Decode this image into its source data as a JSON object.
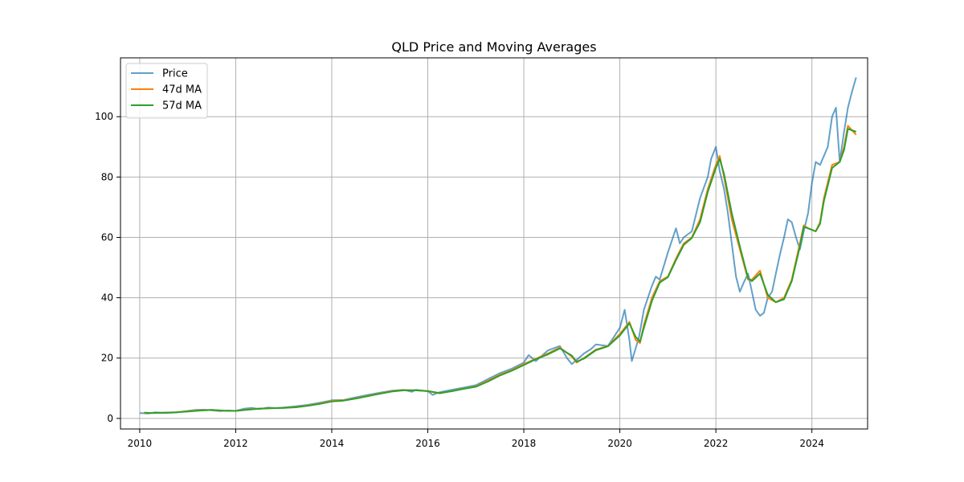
{
  "chart_data": {
    "type": "line",
    "title": "QLD Price and Moving Averages",
    "xlabel": "",
    "ylabel": "",
    "xlim": [
      2009.6,
      2025.16
    ],
    "ylim": [
      -3.5,
      119.5
    ],
    "x_ticks": [
      2010,
      2012,
      2014,
      2016,
      2018,
      2020,
      2022,
      2024
    ],
    "x_tick_labels": [
      "2010",
      "2012",
      "2014",
      "2016",
      "2018",
      "2020",
      "2022",
      "2024"
    ],
    "y_ticks": [
      0,
      20,
      40,
      60,
      80,
      100
    ],
    "y_tick_labels": [
      "0",
      "20",
      "40",
      "60",
      "80",
      "100"
    ],
    "grid": true,
    "legend_position": "top-left",
    "series": [
      {
        "name": "Price",
        "color": "#1f77b4",
        "x": [
          2010.0,
          2010.17,
          2010.33,
          2010.5,
          2010.67,
          2010.83,
          2011.0,
          2011.17,
          2011.33,
          2011.5,
          2011.67,
          2011.83,
          2012.0,
          2012.17,
          2012.33,
          2012.5,
          2012.67,
          2012.83,
          2013.0,
          2013.25,
          2013.5,
          2013.75,
          2014.0,
          2014.25,
          2014.5,
          2014.75,
          2015.0,
          2015.25,
          2015.5,
          2015.67,
          2015.75,
          2016.0,
          2016.1,
          2016.25,
          2016.5,
          2016.75,
          2017.0,
          2017.25,
          2017.5,
          2017.75,
          2018.0,
          2018.1,
          2018.25,
          2018.5,
          2018.75,
          2018.9,
          2019.0,
          2019.25,
          2019.4,
          2019.5,
          2019.75,
          2020.0,
          2020.1,
          2020.2,
          2020.25,
          2020.4,
          2020.5,
          2020.67,
          2020.75,
          2020.83,
          2021.0,
          2021.17,
          2021.25,
          2021.33,
          2021.5,
          2021.67,
          2021.83,
          2021.9,
          2022.0,
          2022.08,
          2022.17,
          2022.25,
          2022.33,
          2022.42,
          2022.5,
          2022.58,
          2022.67,
          2022.75,
          2022.83,
          2022.92,
          2023.0,
          2023.08,
          2023.17,
          2023.25,
          2023.33,
          2023.42,
          2023.5,
          2023.58,
          2023.67,
          2023.75,
          2023.83,
          2023.92,
          2024.0,
          2024.08,
          2024.17,
          2024.25,
          2024.33,
          2024.42,
          2024.5,
          2024.58,
          2024.67,
          2024.75,
          2024.83,
          2024.92
        ],
        "values": [
          1.8,
          1.6,
          2.0,
          1.8,
          1.9,
          2.1,
          2.5,
          2.8,
          2.9,
          2.7,
          2.4,
          2.6,
          2.5,
          3.2,
          3.5,
          3.1,
          3.6,
          3.4,
          3.6,
          4.0,
          4.5,
          5.2,
          6.0,
          6.1,
          7.0,
          7.8,
          8.5,
          9.2,
          9.5,
          8.8,
          9.5,
          9.0,
          7.8,
          8.7,
          9.5,
          10.2,
          11.0,
          13.0,
          15.0,
          16.5,
          18.5,
          21.0,
          19.0,
          22.5,
          24.0,
          20.0,
          18.0,
          21.5,
          23.0,
          24.5,
          24.0,
          30.0,
          36.0,
          26.0,
          19.0,
          27.0,
          36.0,
          44.0,
          47.0,
          46.0,
          55.0,
          63.0,
          58.0,
          60.0,
          62.0,
          73.0,
          80.0,
          86.0,
          90.0,
          82.0,
          76.0,
          68.0,
          58.0,
          47.0,
          42.0,
          45.0,
          48.0,
          42.0,
          36.0,
          34.0,
          35.0,
          40.0,
          42.0,
          48.0,
          54.0,
          60.0,
          66.0,
          65.0,
          60.0,
          56.0,
          62.0,
          68.0,
          78.0,
          85.0,
          84.0,
          87.0,
          90.0,
          100.0,
          103.0,
          85.0,
          95.0,
          103.0,
          108.0,
          113.0
        ]
      },
      {
        "name": "47d MA",
        "color": "#ff7f0e",
        "x": [
          2010.08,
          2010.25,
          2010.5,
          2010.75,
          2011.0,
          2011.25,
          2011.5,
          2011.75,
          2012.0,
          2012.25,
          2012.5,
          2012.75,
          2013.0,
          2013.25,
          2013.5,
          2013.75,
          2014.0,
          2014.25,
          2014.5,
          2014.75,
          2015.0,
          2015.25,
          2015.5,
          2015.75,
          2016.0,
          2016.25,
          2016.5,
          2016.75,
          2017.0,
          2017.25,
          2017.5,
          2017.75,
          2018.0,
          2018.25,
          2018.5,
          2018.75,
          2019.0,
          2019.1,
          2019.25,
          2019.5,
          2019.75,
          2020.0,
          2020.2,
          2020.33,
          2020.42,
          2020.5,
          2020.67,
          2020.83,
          2021.0,
          2021.17,
          2021.33,
          2021.5,
          2021.67,
          2021.83,
          2022.0,
          2022.08,
          2022.17,
          2022.33,
          2022.5,
          2022.67,
          2022.75,
          2022.92,
          2023.08,
          2023.25,
          2023.42,
          2023.58,
          2023.75,
          2023.83,
          2023.92,
          2024.08,
          2024.17,
          2024.25,
          2024.42,
          2024.58,
          2024.67,
          2024.75,
          2024.92
        ],
        "values": [
          1.9,
          1.8,
          1.9,
          2.0,
          2.4,
          2.7,
          2.8,
          2.5,
          2.5,
          3.0,
          3.3,
          3.4,
          3.5,
          3.8,
          4.3,
          4.9,
          5.8,
          6.0,
          6.7,
          7.5,
          8.3,
          9.0,
          9.4,
          9.3,
          9.0,
          8.3,
          9.1,
          9.9,
          10.6,
          12.5,
          14.5,
          16.0,
          18.0,
          19.8,
          21.5,
          23.5,
          20.5,
          18.5,
          20.0,
          22.8,
          24.0,
          28.0,
          32.0,
          26.0,
          25.0,
          31.0,
          40.0,
          45.5,
          47.0,
          53.0,
          58.0,
          60.0,
          66.0,
          76.0,
          84.0,
          87.0,
          80.0,
          66.0,
          56.0,
          46.0,
          46.0,
          49.0,
          40.0,
          38.5,
          40.0,
          46.0,
          58.0,
          64.0,
          63.0,
          62.0,
          65.0,
          73.0,
          84.0,
          85.0,
          90.0,
          97.0,
          94.0
        ]
      },
      {
        "name": "57d MA",
        "color": "#2ca02c",
        "x": [
          2010.1,
          2010.25,
          2010.5,
          2010.75,
          2011.0,
          2011.25,
          2011.5,
          2011.75,
          2012.0,
          2012.25,
          2012.5,
          2012.75,
          2013.0,
          2013.25,
          2013.5,
          2013.75,
          2014.0,
          2014.25,
          2014.5,
          2014.75,
          2015.0,
          2015.25,
          2015.5,
          2015.75,
          2016.0,
          2016.25,
          2016.5,
          2016.75,
          2017.0,
          2017.25,
          2017.5,
          2017.75,
          2018.0,
          2018.25,
          2018.5,
          2018.75,
          2019.0,
          2019.1,
          2019.25,
          2019.5,
          2019.75,
          2020.0,
          2020.2,
          2020.33,
          2020.42,
          2020.5,
          2020.67,
          2020.83,
          2021.0,
          2021.17,
          2021.33,
          2021.5,
          2021.67,
          2021.83,
          2022.0,
          2022.08,
          2022.17,
          2022.33,
          2022.5,
          2022.67,
          2022.75,
          2022.92,
          2023.08,
          2023.25,
          2023.42,
          2023.58,
          2023.75,
          2023.83,
          2023.92,
          2024.08,
          2024.17,
          2024.25,
          2024.42,
          2024.58,
          2024.67,
          2024.75,
          2024.92
        ],
        "values": [
          1.9,
          1.8,
          1.9,
          2.0,
          2.3,
          2.6,
          2.8,
          2.6,
          2.5,
          2.9,
          3.2,
          3.4,
          3.5,
          3.7,
          4.2,
          4.8,
          5.6,
          5.9,
          6.6,
          7.4,
          8.2,
          8.9,
          9.3,
          9.3,
          9.1,
          8.4,
          9.0,
          9.8,
          10.5,
          12.2,
          14.2,
          15.8,
          17.7,
          19.6,
          21.2,
          23.2,
          20.8,
          18.8,
          19.8,
          22.6,
          23.9,
          27.5,
          31.5,
          27.0,
          25.5,
          30.0,
          39.0,
          45.0,
          46.8,
          52.5,
          57.5,
          59.8,
          65.0,
          75.0,
          83.0,
          86.0,
          81.0,
          68.0,
          57.0,
          46.5,
          45.5,
          48.0,
          41.0,
          38.5,
          39.5,
          45.5,
          57.0,
          63.5,
          63.0,
          62.0,
          64.5,
          72.0,
          83.0,
          85.0,
          89.0,
          96.0,
          95.0
        ]
      }
    ]
  }
}
